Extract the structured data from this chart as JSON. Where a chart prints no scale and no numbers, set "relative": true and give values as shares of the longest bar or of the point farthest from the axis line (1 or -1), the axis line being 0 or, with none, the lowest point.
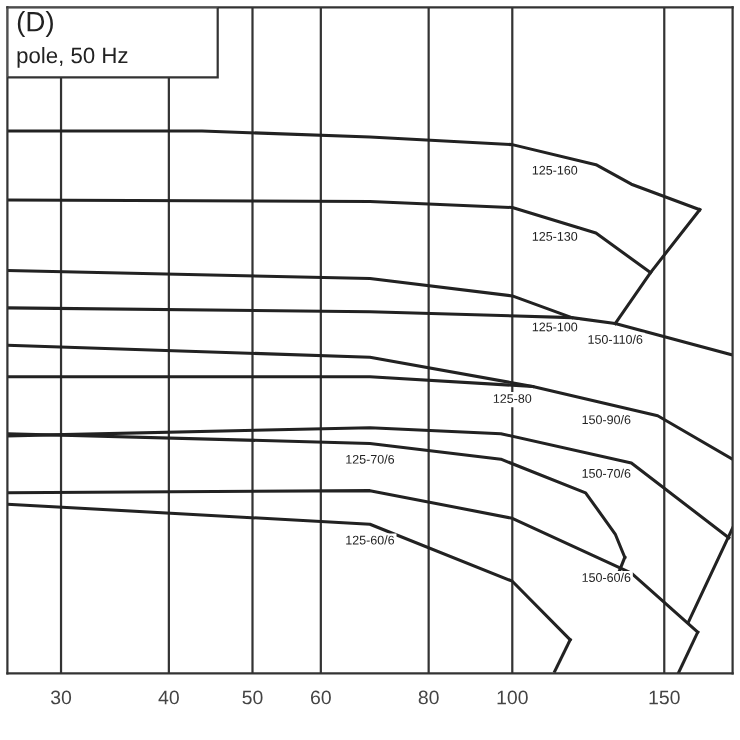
{
  "chart_data": {
    "type": "line",
    "title": "(D)",
    "subtitle": "pole, 50 Hz",
    "relative": true,
    "log": "x",
    "grid": "x",
    "marker": "none",
    "line_style": "solid",
    "xlim": [
      26,
      180
    ],
    "xticks": [
      30,
      40,
      50,
      60,
      80,
      100,
      150
    ],
    "series": [
      {
        "color": "#222222",
        "x": [
          26,
          43.7,
          68.4,
          100,
          125,
          137.4,
          164.9
        ],
        "values": [
          1.0,
          1.0,
          0.989,
          0.975,
          0.938,
          0.902,
          0.855
        ]
      },
      {
        "color": "#222222",
        "x": [
          26,
          68.4,
          100,
          125,
          144.6
        ],
        "values": [
          0.873,
          0.87,
          0.859,
          0.812,
          0.739
        ]
      },
      {
        "color": "#222222",
        "x": [
          26,
          68.4,
          100,
          117.2
        ],
        "values": [
          0.743,
          0.728,
          0.696,
          0.656
        ]
      },
      {
        "color": "#222222",
        "x": [
          26,
          68.4,
          117.2,
          131.6,
          180
        ],
        "values": [
          0.674,
          0.667,
          0.656,
          0.645,
          0.587
        ]
      },
      {
        "color": "#222222",
        "x": [
          26,
          68.4,
          105.6
        ],
        "values": [
          0.605,
          0.583,
          0.529
        ]
      },
      {
        "color": "#222222",
        "x": [
          26,
          68.4,
          105.6,
          147.4,
          180
        ],
        "values": [
          0.547,
          0.547,
          0.529,
          0.475,
          0.395
        ]
      },
      {
        "color": "#222222",
        "x": [
          26,
          68.4,
          97.0,
          137.4,
          178.2
        ],
        "values": [
          0.438,
          0.453,
          0.442,
          0.388,
          0.25
        ]
      },
      {
        "color": "#222222",
        "x": [
          26,
          68.4,
          97.0,
          121.6,
          131.6,
          135
        ],
        "values": [
          0.442,
          0.424,
          0.395,
          0.333,
          0.257,
          0.214
        ]
      },
      {
        "color": "#222222",
        "x": [
          26,
          68.4,
          100,
          137.4,
          164.0
        ],
        "values": [
          0.333,
          0.337,
          0.286,
          0.185,
          0.076
        ]
      },
      {
        "color": "#222222",
        "x": [
          26,
          68.4,
          100,
          116.7
        ],
        "values": [
          0.312,
          0.275,
          0.17,
          0.062
        ]
      },
      {
        "color": "#222222",
        "x": [
          164.9,
          144.6,
          131.6
        ],
        "values": [
          0.855,
          0.739,
          0.645
        ]
      },
      {
        "color": "#222222",
        "x": [
          180,
          159.9
        ],
        "values": [
          0.268,
          0.094
        ]
      },
      {
        "color": "#222222",
        "x": [
          164.0,
          155.7
        ],
        "values": [
          0.076,
          0.0
        ]
      },
      {
        "color": "#222222",
        "x": [
          116.7,
          112
        ],
        "values": [
          0.062,
          0.004
        ]
      },
      {
        "color": "#222222",
        "x": [
          135,
          133
        ],
        "values": [
          0.214,
          0.188
        ]
      }
    ],
    "annotations": [
      {
        "text": "125-160",
        "x": 112,
        "y": 0.957
      },
      {
        "text": "125-130",
        "x": 112,
        "y": 0.835
      },
      {
        "text": "125-100",
        "x": 112,
        "y": 0.668
      },
      {
        "text": "125-80",
        "x": 100,
        "y": 0.536
      },
      {
        "text": "150-110/6",
        "x": 131.6,
        "y": 0.645
      },
      {
        "text": "150-90/6",
        "x": 128.5,
        "y": 0.497
      },
      {
        "text": "125-70/6",
        "x": 68.4,
        "y": 0.424
      },
      {
        "text": "150-70/6",
        "x": 128.5,
        "y": 0.398
      },
      {
        "text": "125-60/6",
        "x": 68.4,
        "y": 0.275
      },
      {
        "text": "150-60/6",
        "x": 128.5,
        "y": 0.206
      }
    ]
  }
}
